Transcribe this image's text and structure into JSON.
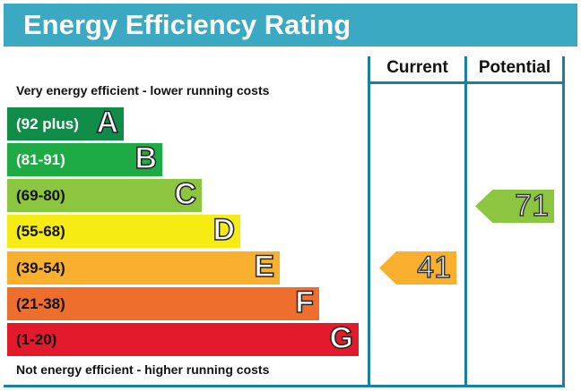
{
  "header": {
    "title": "Energy Efficiency Rating"
  },
  "columns": {
    "current": "Current",
    "potential": "Potential"
  },
  "captions": {
    "top": "Very energy efficient - lower running costs",
    "bottom": "Not energy efficient - higher running costs"
  },
  "chart_data": {
    "type": "bar",
    "title": "Energy Efficiency Rating",
    "bands": [
      {
        "letter": "A",
        "range": "(92 plus)",
        "color": "#108c48",
        "text_color": "#ffffff"
      },
      {
        "letter": "B",
        "range": "(81-91)",
        "color": "#1eab45",
        "text_color": "#ffffff"
      },
      {
        "letter": "C",
        "range": "(69-80)",
        "color": "#8cc53f",
        "text_color": "#111111"
      },
      {
        "letter": "D",
        "range": "(55-68)",
        "color": "#f6ec14",
        "text_color": "#111111"
      },
      {
        "letter": "E",
        "range": "(39-54)",
        "color": "#f9b02e",
        "text_color": "#111111"
      },
      {
        "letter": "F",
        "range": "(21-38)",
        "color": "#ee6e2d",
        "text_color": "#111111"
      },
      {
        "letter": "G",
        "range": "(1-20)",
        "color": "#e21a2b",
        "text_color": "#111111"
      }
    ],
    "current": {
      "value": "41",
      "band": "E",
      "color": "#f9b02e"
    },
    "potential": {
      "value": "71",
      "band": "C",
      "color": "#8cc53f"
    }
  }
}
